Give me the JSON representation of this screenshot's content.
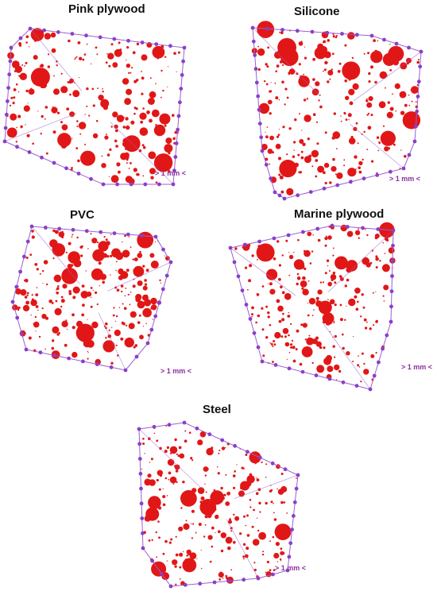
{
  "colors": {
    "pore": "#e11717",
    "frame": "#9c5fd0",
    "vertex": "#8a3fc8",
    "scale_text": "#8b2f9f"
  },
  "panels": [
    {
      "id": "pink-plywood",
      "title": "Pink plywood",
      "scale_label": "> 1 mm <"
    },
    {
      "id": "silicone",
      "title": "Silicone",
      "scale_label": "> 1 mm <"
    },
    {
      "id": "pvc",
      "title": "PVC",
      "scale_label": "> 1 mm <"
    },
    {
      "id": "marine-plywood",
      "title": "Marine plywood",
      "scale_label": "> 1 mm <"
    },
    {
      "id": "steel",
      "title": "Steel",
      "scale_label": "> 1 mm <"
    }
  ]
}
